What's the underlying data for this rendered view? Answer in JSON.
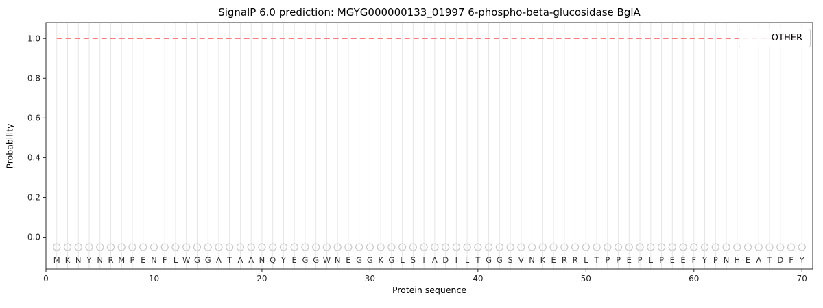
{
  "chart_data": {
    "type": "line",
    "title": "SignalP 6.0 prediction: MGYG000000133_01997 6-phospho-beta-glucosidase BglA",
    "xlabel": "Protein sequence",
    "ylabel": "Probability",
    "xlim": [
      0,
      71
    ],
    "ylim": [
      -0.16,
      1.08
    ],
    "x_ticks": [
      0,
      10,
      20,
      30,
      40,
      50,
      60,
      70
    ],
    "y_ticks": [
      0.0,
      0.2,
      0.4,
      0.6,
      0.8,
      1.0
    ],
    "y_tick_labels": [
      "0.0",
      "0.2",
      "0.4",
      "0.6",
      "0.8",
      "1.0"
    ],
    "grid": {
      "vertical_per_residue": true,
      "color": "#e6e6e6"
    },
    "legend": {
      "position": "upper right",
      "entries": [
        {
          "label": "OTHER",
          "color": "#f77f7f",
          "linestyle": "dashed"
        }
      ]
    },
    "series": [
      {
        "name": "OTHER",
        "linestyle": "dashed",
        "color": "#f77f7f",
        "x_start": 1,
        "x_end": 70,
        "y_constant": 1.0,
        "description": "OTHER probability is constant at 1.0 for residues 1-70"
      }
    ],
    "sequence": "MKNYNRMPENFLWGGATAANQYEGGWNEGGKGLSIADILTGGSVNKERRLTPPEPLPEEFYPNHEATDFY",
    "sequence_marker": {
      "shape": "circle",
      "y": -0.05,
      "color": "#c8c8c8",
      "letter_color": "#333333",
      "letter_y": -0.115
    }
  }
}
